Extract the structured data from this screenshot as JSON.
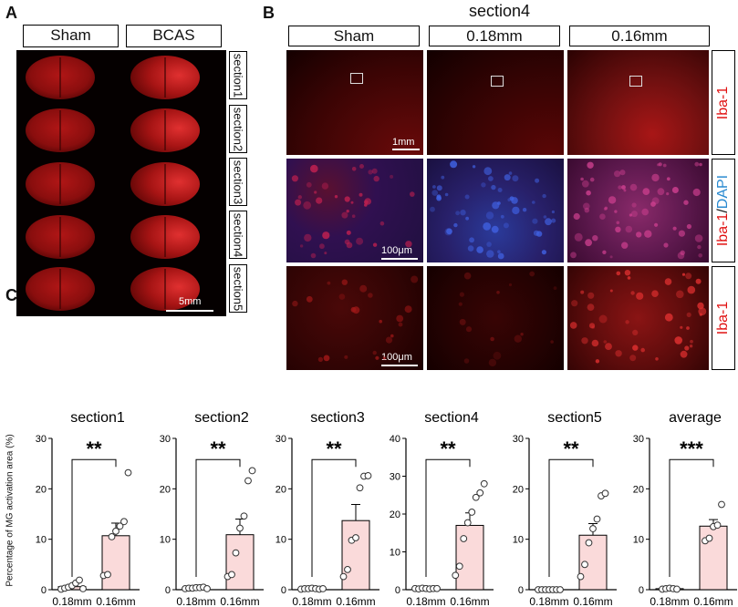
{
  "panel_labels": {
    "a": "A",
    "b": "B",
    "c": "C"
  },
  "panel_a": {
    "groups": [
      "Sham",
      "BCAS"
    ],
    "sections": [
      "section1",
      "section2",
      "section3",
      "section4",
      "section5"
    ],
    "scale_bar": "5mm"
  },
  "panel_b": {
    "title": "section4",
    "columns": [
      "Sham",
      "0.18mm",
      "0.16mm"
    ],
    "rows": [
      {
        "stain": "Iba-1",
        "scale_bar": "1mm"
      },
      {
        "stain_red": "Iba-1",
        "stain_sep": "/",
        "stain_blue": "DAPI",
        "scale_bar": "100μm"
      },
      {
        "stain": "Iba-1",
        "scale_bar": "100μm"
      }
    ]
  },
  "panel_c": {
    "ylabel": "Percentage of MG activation area (%)"
  },
  "chart_data": [
    {
      "type": "bar",
      "title": "section1",
      "categories": [
        "0.18mm",
        "0.16mm"
      ],
      "ylim": [
        0,
        30
      ],
      "yticks": [
        0,
        10,
        20,
        30
      ],
      "values": [
        0.6,
        10.7
      ],
      "sem": [
        0.3,
        2.5
      ],
      "significance": "**",
      "points": [
        [
          0.1,
          0.3,
          0.5,
          0.8,
          1.3,
          1.9,
          0.2
        ],
        [
          2.8,
          3.0,
          10.5,
          11.6,
          12.6,
          13.5,
          23.2
        ]
      ]
    },
    {
      "type": "bar",
      "title": "section2",
      "categories": [
        "0.18mm",
        "0.16mm"
      ],
      "ylim": [
        0,
        30
      ],
      "yticks": [
        0,
        10,
        20,
        30
      ],
      "values": [
        0.3,
        10.9
      ],
      "sem": [
        0.2,
        3.1
      ],
      "significance": "**",
      "points": [
        [
          0.2,
          0.3,
          0.3,
          0.4,
          0.4,
          0.5,
          0.2
        ],
        [
          2.6,
          3.0,
          7.3,
          12.2,
          14.6,
          21.6,
          23.6
        ]
      ]
    },
    {
      "type": "bar",
      "title": "section3",
      "categories": [
        "0.18mm",
        "0.16mm"
      ],
      "ylim": [
        0,
        30
      ],
      "yticks": [
        0,
        10,
        20,
        30
      ],
      "values": [
        0.2,
        13.7
      ],
      "sem": [
        0.1,
        3.2
      ],
      "significance": "**",
      "points": [
        [
          0.1,
          0.2,
          0.2,
          0.3,
          0.2,
          0.1,
          0.2
        ],
        [
          2.6,
          4.0,
          9.8,
          10.3,
          20.2,
          22.5,
          22.6
        ]
      ]
    },
    {
      "type": "bar",
      "title": "section4",
      "categories": [
        "0.18mm",
        "0.16mm"
      ],
      "ylim": [
        0,
        40
      ],
      "yticks": [
        0,
        10,
        20,
        30,
        40
      ],
      "values": [
        0.3,
        17.0
      ],
      "sem": [
        0.2,
        3.3
      ],
      "significance": "**",
      "points": [
        [
          0.3,
          0.2,
          0.4,
          0.3,
          0.2,
          0.3,
          0.3
        ],
        [
          3.8,
          6.2,
          13.5,
          17.7,
          20.5,
          24.4,
          25.6,
          28.0
        ]
      ]
    },
    {
      "type": "bar",
      "title": "section5",
      "categories": [
        "0.18mm",
        "0.16mm"
      ],
      "ylim": [
        0,
        30
      ],
      "yticks": [
        0,
        10,
        20,
        30
      ],
      "values": [
        0.0,
        10.8
      ],
      "sem": [
        0.0,
        2.3
      ],
      "significance": "**",
      "points": [
        [
          0,
          0,
          0,
          0,
          0,
          0,
          0
        ],
        [
          2.6,
          5.0,
          9.3,
          12.1,
          14.0,
          18.6,
          19.1
        ]
      ]
    },
    {
      "type": "bar",
      "title": "average",
      "categories": [
        "0.18mm",
        "0.16mm"
      ],
      "ylim": [
        0,
        30
      ],
      "yticks": [
        0,
        10,
        20,
        30
      ],
      "values": [
        0.2,
        12.6
      ],
      "sem": [
        0.1,
        1.3
      ],
      "significance": "***",
      "points": [
        [
          0.1,
          0.2,
          0.3,
          0.2,
          0.1
        ],
        [
          9.7,
          10.2,
          12.5,
          12.8,
          16.9
        ]
      ]
    }
  ]
}
